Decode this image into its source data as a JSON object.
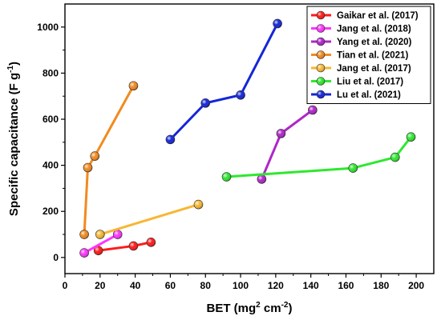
{
  "chart_data": {
    "type": "line",
    "xlabel_main": "BET (mg",
    "xlabel_sup": "2",
    "xlabel_mid": " cm",
    "xlabel_sup2": "-2",
    "xlabel_end": ")",
    "ylabel_main": "Specific capacitance (F g",
    "ylabel_sup": "-1",
    "ylabel_end": ")",
    "xlim": [
      0,
      210
    ],
    "ylim": [
      -70,
      1100
    ],
    "x_ticks": [
      0,
      20,
      40,
      60,
      80,
      100,
      120,
      140,
      160,
      180,
      200
    ],
    "y_ticks": [
      0,
      200,
      400,
      600,
      800,
      1000
    ],
    "legend_position": "top-right",
    "grid": false,
    "series": [
      {
        "name": "Gaikar et al. (2017)",
        "color": "#ff1a1a",
        "points": [
          [
            19,
            30
          ],
          [
            39,
            50
          ],
          [
            49,
            66
          ]
        ]
      },
      {
        "name": "Jang et al. (2018)",
        "color": "#ff33ff",
        "points": [
          [
            11,
            20
          ],
          [
            30,
            100
          ]
        ]
      },
      {
        "name": "Yang et al. (2020)",
        "color": "#b026c9",
        "points": [
          [
            112,
            340
          ],
          [
            123,
            538
          ],
          [
            141,
            640
          ]
        ]
      },
      {
        "name": "Tian et al. (2021)",
        "color": "#f28a20",
        "points": [
          [
            11,
            100
          ],
          [
            13,
            390
          ],
          [
            17,
            440
          ],
          [
            39,
            745
          ]
        ]
      },
      {
        "name": "Jang et al. (2017)",
        "color": "#f7b733",
        "points": [
          [
            20,
            100
          ],
          [
            76,
            230
          ]
        ]
      },
      {
        "name": "Liu et al. (2017)",
        "color": "#2ee82e",
        "points": [
          [
            92,
            350
          ],
          [
            164,
            388
          ],
          [
            188,
            435
          ],
          [
            197,
            523
          ]
        ]
      },
      {
        "name": "Lu et al. (2021)",
        "color": "#1426d9",
        "points": [
          [
            60,
            512
          ],
          [
            80,
            670
          ],
          [
            100,
            705
          ],
          [
            121,
            1015
          ]
        ]
      }
    ]
  }
}
